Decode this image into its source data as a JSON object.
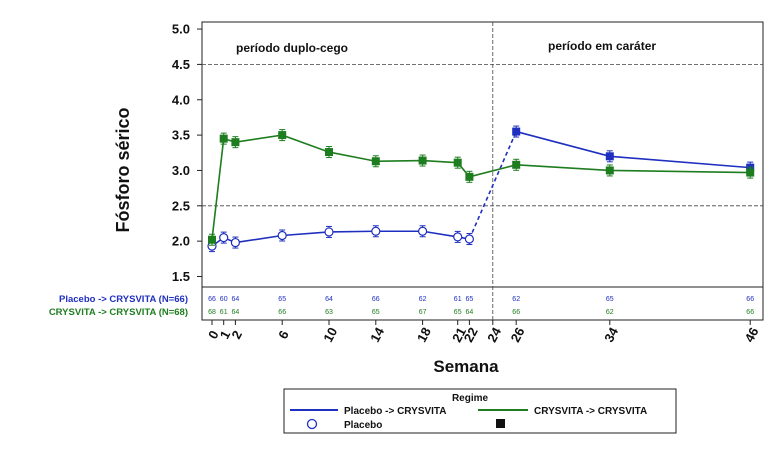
{
  "chart_data": {
    "type": "line",
    "title": "",
    "xlabel": "Semana",
    "ylabel": "Fósforo sérico",
    "ylim": [
      1.3,
      5.0
    ],
    "yticks": [
      "1.5",
      "2.0",
      "2.5",
      "3.0",
      "3.5",
      "4.0",
      "4.5",
      "5.0"
    ],
    "xticks": [
      "0",
      "1",
      "2",
      "6",
      "10",
      "14",
      "18",
      "21",
      "22",
      "24",
      "26",
      "34",
      "46"
    ],
    "reference_lines_y": [
      2.5,
      4.5
    ],
    "divider_x": 24,
    "annotations": [
      "período duplo-cego",
      "período em caráter"
    ],
    "series": [
      {
        "name": "Placebo -> CRYSVITA",
        "color": "#1f2fbf",
        "x": [
          0,
          1,
          2,
          6,
          10,
          14,
          18,
          21,
          22,
          26,
          34,
          46
        ],
        "values": [
          1.93,
          2.05,
          1.98,
          2.08,
          2.13,
          2.14,
          2.14,
          2.06,
          2.03,
          3.55,
          3.2,
          3.04
        ]
      },
      {
        "name": "CRYSVITA -> CRYSVITA",
        "color": "#1e7d1e",
        "x": [
          0,
          1,
          2,
          6,
          10,
          14,
          18,
          21,
          22,
          26,
          34,
          46
        ],
        "values": [
          2.02,
          3.45,
          3.4,
          3.5,
          3.26,
          3.13,
          3.14,
          3.11,
          2.91,
          3.08,
          3.0,
          2.97
        ]
      }
    ],
    "n_table": {
      "weeks": [
        0,
        1,
        2,
        6,
        10,
        14,
        18,
        21,
        22,
        26,
        34,
        46
      ],
      "rows": [
        {
          "label": "Placebo -> CRYSVITA (N=66)",
          "color": "#1f2fbf",
          "values": [
            "66",
            "60",
            "64",
            "65",
            "64",
            "66",
            "62",
            "61",
            "65",
            "62",
            "65",
            "66"
          ]
        },
        {
          "label": "CRYSVITA -> CRYSVITA (N=68)",
          "color": "#1e7d1e",
          "values": [
            "68",
            "61",
            "64",
            "66",
            "63",
            "65",
            "67",
            "65",
            "64",
            "66",
            "62",
            "66"
          ]
        }
      ]
    },
    "legend": {
      "title": "Regime",
      "entries": [
        {
          "label": "Placebo -> CRYSVITA",
          "kind": "line",
          "color": "#1f2fbf"
        },
        {
          "label": "CRYSVITA -> CRYSVITA",
          "kind": "line",
          "color": "#1e7d1e"
        },
        {
          "label": "Placebo",
          "kind": "open-circle",
          "color": "#1f2fbf"
        },
        {
          "label": "",
          "kind": "filled-square",
          "color": "#111111"
        }
      ]
    }
  }
}
